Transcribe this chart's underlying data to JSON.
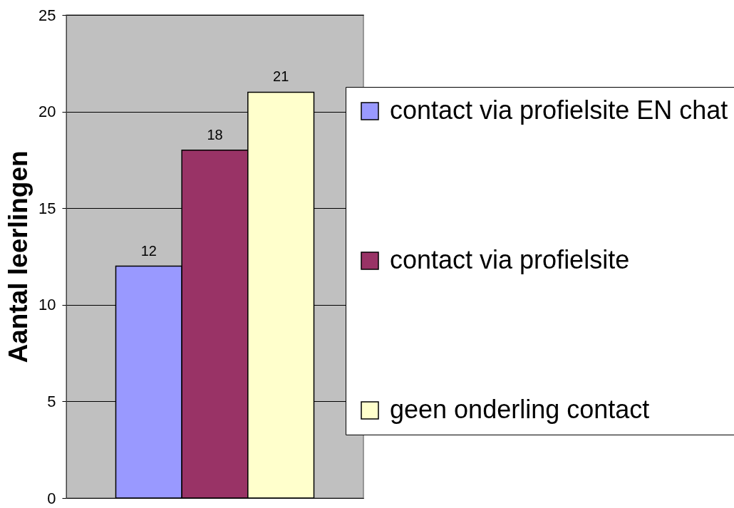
{
  "chart_data": {
    "type": "bar",
    "ylabel": "Aantal leerlingen",
    "categories": [
      null
    ],
    "series": [
      {
        "name": "contact via profielsite EN chat",
        "color": "#9999ff",
        "values": [
          12
        ]
      },
      {
        "name": "contact via profielsite",
        "color": "#993366",
        "values": [
          18
        ]
      },
      {
        "name": "geen onderling contact",
        "color": "#ffffcc",
        "values": [
          21
        ]
      }
    ],
    "ylim": [
      0,
      25
    ],
    "yticks": [
      0,
      5,
      10,
      15,
      20,
      25
    ],
    "grid": "y",
    "legend": "right",
    "data_labels": true
  }
}
